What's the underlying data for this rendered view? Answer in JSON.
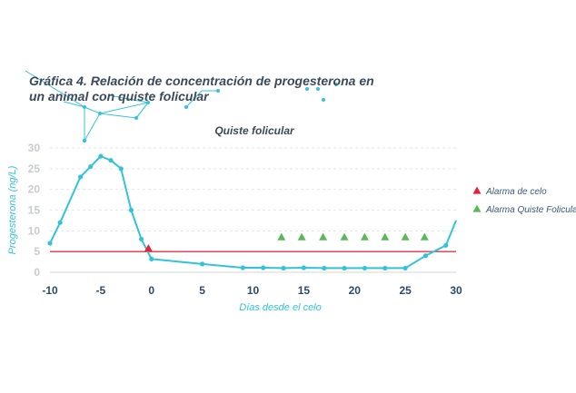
{
  "chart_data": {
    "type": "line",
    "title_lines": [
      "Gráfica 4. Relación de concentración de progesterona en",
      "un animal con quiste folicular"
    ],
    "subtitle": "Quiste folicular",
    "xlabel": "Días desde el celo",
    "ylabel": "Progesterona (ng/L)",
    "xlim": [
      -10,
      30
    ],
    "ylim": [
      0,
      30
    ],
    "x_ticks": [
      -10,
      -5,
      0,
      5,
      10,
      15,
      20,
      25,
      30
    ],
    "y_ticks": [
      0,
      5,
      10,
      15,
      20,
      25,
      30
    ],
    "grid": true,
    "legend_position": "right",
    "threshold": 5,
    "colors": {
      "line": "#33c3d8",
      "threshold": "#e8304a",
      "alarma_celo": "#e8203a",
      "alarma_quiste": "#5bb85a"
    },
    "series": [
      {
        "x": [
          -10,
          -9,
          -7,
          -6,
          -5,
          -4,
          -3,
          -2,
          -1,
          0,
          5,
          9,
          11,
          13,
          15,
          17,
          19,
          21,
          23,
          25,
          27,
          29,
          30
        ],
        "y": [
          7,
          12,
          23,
          25.5,
          28,
          27,
          25,
          15,
          8,
          3.2,
          2,
          1.1,
          1.1,
          1,
          1.1,
          1,
          1,
          1,
          1,
          1,
          4,
          6.5,
          12.5
        ],
        "markers": [
          true,
          true,
          true,
          true,
          true,
          true,
          true,
          true,
          true,
          true,
          true,
          true,
          true,
          true,
          true,
          true,
          true,
          true,
          true,
          true,
          true,
          true,
          false
        ]
      }
    ],
    "alarma_celo_points": [
      {
        "x": -0.3,
        "y": 5.8
      }
    ],
    "alarma_quiste_points": [
      {
        "x": 12.8,
        "y": 8.5
      },
      {
        "x": 14.8,
        "y": 8.5
      },
      {
        "x": 16.9,
        "y": 8.5
      },
      {
        "x": 19,
        "y": 8.5
      },
      {
        "x": 21,
        "y": 8.5
      },
      {
        "x": 23,
        "y": 8.5
      },
      {
        "x": 25,
        "y": 8.5
      },
      {
        "x": 26.9,
        "y": 8.5
      }
    ],
    "legend": [
      {
        "label": "Alarma de celo",
        "marker": "triangle",
        "color": "#e8203a"
      },
      {
        "label": "Alarma Quiste Folicular",
        "marker": "triangle",
        "color": "#5bb85a"
      }
    ]
  }
}
